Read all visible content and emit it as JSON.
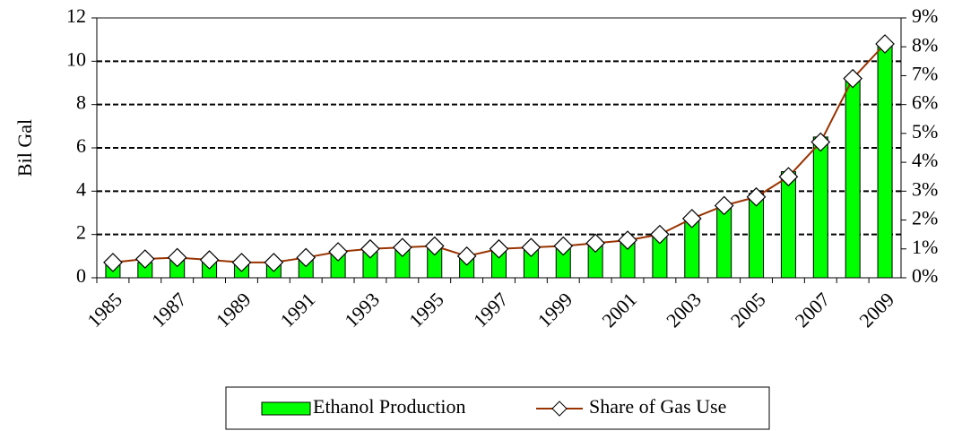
{
  "chart_data": {
    "type": "bar-line",
    "categories": [
      "1985",
      null,
      "1987",
      null,
      "1989",
      null,
      "1991",
      null,
      "1993",
      null,
      "1995",
      null,
      "1997",
      null,
      "1999",
      null,
      "2001",
      null,
      "2003",
      null,
      "2005",
      null,
      "2007",
      null,
      "2009"
    ],
    "series": [
      {
        "name": "Ethanol Production",
        "type": "bar",
        "color": "#00ff00",
        "values": [
          0.6,
          0.7,
          0.8,
          0.8,
          0.8,
          0.7,
          0.9,
          1.1,
          1.2,
          1.3,
          1.4,
          1.0,
          1.3,
          1.4,
          1.5,
          1.6,
          1.8,
          2.1,
          2.8,
          3.4,
          3.9,
          4.9,
          6.5,
          9.2,
          10.8
        ]
      },
      {
        "name": "Share of Gas Use",
        "type": "line",
        "axis": "y2",
        "color": "#993300",
        "values": [
          0.53,
          0.65,
          0.7,
          0.62,
          0.53,
          0.53,
          0.7,
          0.9,
          1.0,
          1.05,
          1.1,
          0.75,
          1.0,
          1.05,
          1.1,
          1.2,
          1.3,
          1.5,
          2.05,
          2.5,
          2.8,
          3.5,
          4.7,
          6.9,
          8.1
        ]
      }
    ],
    "ylabel": "Bil Gal",
    "ylim": [
      0,
      12
    ],
    "yticks": [
      0,
      2,
      4,
      6,
      8,
      10,
      12
    ],
    "y2lim": [
      0,
      9
    ],
    "y2ticks": [
      {
        "value": 0,
        "label": "0%"
      },
      {
        "value": 1,
        "label": "1%"
      },
      {
        "value": 2,
        "label": "2%"
      },
      {
        "value": 3,
        "label": "3%"
      },
      {
        "value": 4,
        "label": "4%"
      },
      {
        "value": 5,
        "label": "5%"
      },
      {
        "value": 6,
        "label": "6%"
      },
      {
        "value": 7,
        "label": "7%"
      },
      {
        "value": 8,
        "label": "8%"
      },
      {
        "value": 9,
        "label": "9%"
      }
    ],
    "grid": true,
    "legend": "bottom"
  }
}
